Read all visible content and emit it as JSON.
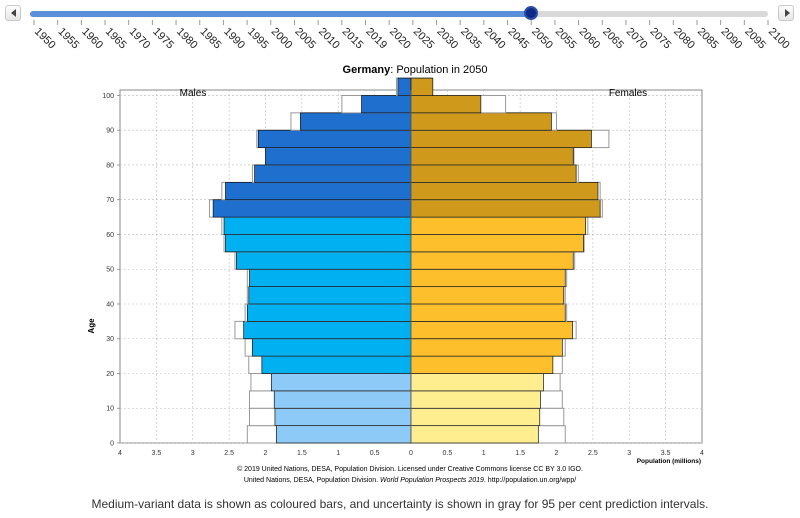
{
  "timeline": {
    "years": [
      "1950",
      "1955",
      "1960",
      "1965",
      "1970",
      "1975",
      "1980",
      "1985",
      "1990",
      "1995",
      "2000",
      "2005",
      "2010",
      "2015",
      "2019",
      "2020",
      "2025",
      "2030",
      "2035",
      "2040",
      "2045",
      "2050",
      "2055",
      "2060",
      "2065",
      "2070",
      "2075",
      "2080",
      "2085",
      "2090",
      "2095",
      "2100"
    ],
    "selected_year": "2050",
    "prev_icon": "chevron-left-icon",
    "next_icon": "chevron-right-icon",
    "track_color": "#d9d9d9",
    "fill_color": "#5b8fd9",
    "handle_color": "#0f2b86"
  },
  "chart_data": {
    "type": "bar",
    "orientation": "horizontal-pyramid",
    "title_country": "Germany",
    "title_rest": ": Population in 2050",
    "male_label": "Males",
    "female_label": "Females",
    "ylabel": "Age",
    "xlabel": "Population (millions)",
    "xlim": [
      -4,
      4
    ],
    "x_ticks": [
      "4",
      "3.5",
      "3",
      "2.5",
      "2",
      "1.5",
      "1",
      "0.5",
      "0",
      "0.5",
      "1",
      "1.5",
      "2",
      "2.5",
      "3",
      "3.5",
      "4"
    ],
    "y_ticks": [
      "0",
      "10",
      "20",
      "30",
      "40",
      "50",
      "60",
      "70",
      "80",
      "90",
      "100"
    ],
    "age_groups": [
      "0-4",
      "5-9",
      "10-14",
      "15-19",
      "20-24",
      "25-29",
      "30-34",
      "35-39",
      "40-44",
      "45-49",
      "50-54",
      "55-59",
      "60-64",
      "65-69",
      "70-74",
      "75-79",
      "80-84",
      "85-89",
      "90-94",
      "95-99",
      "100+"
    ],
    "series": [
      {
        "name": "Males",
        "values": [
          1.85,
          1.87,
          1.88,
          1.92,
          2.05,
          2.18,
          2.3,
          2.25,
          2.23,
          2.22,
          2.4,
          2.55,
          2.57,
          2.72,
          2.55,
          2.15,
          2.0,
          2.1,
          1.52,
          0.68,
          0.18
        ]
      },
      {
        "name": "Females",
        "values": [
          1.75,
          1.77,
          1.78,
          1.82,
          1.95,
          2.08,
          2.22,
          2.12,
          2.1,
          2.12,
          2.23,
          2.37,
          2.4,
          2.6,
          2.57,
          2.27,
          2.23,
          2.48,
          1.93,
          0.96,
          0.3
        ]
      }
    ],
    "uncertainty_upper": {
      "Males": [
        2.25,
        2.22,
        2.22,
        2.2,
        2.23,
        2.28,
        2.42,
        2.28,
        2.25,
        2.25,
        2.42,
        2.57,
        2.6,
        2.77,
        2.6,
        2.18,
        2.0,
        2.12,
        1.65,
        0.95,
        0.2
      ],
      "Females": [
        2.12,
        2.1,
        2.08,
        2.05,
        2.08,
        2.12,
        2.27,
        2.14,
        2.12,
        2.14,
        2.25,
        2.38,
        2.43,
        2.63,
        2.6,
        2.3,
        2.24,
        2.72,
        2.0,
        1.3,
        0.28
      ]
    },
    "colors": {
      "male_young": "#8ecaf7",
      "male_working": "#00b0f0",
      "male_old": "#1f6fcf",
      "female_young": "#ffee90",
      "female_working": "#fdc02c",
      "female_old": "#cf9a1c",
      "uncertainty": "#999999"
    },
    "grid": true,
    "legend": "none"
  },
  "footer": {
    "copyright_line": "© 2019 United Nations, DESA, Population Division. Licensed under Creative Commons license CC BY 3.0 IGO.",
    "source_prefix": "United Nations, DESA, Population Division. ",
    "source_title": "World Population Prospects 2019",
    "source_suffix": ". http://population.un.org/wpp/"
  },
  "caption": "Medium-variant data is shown as coloured bars, and uncertainty is shown in gray for 95 per cent prediction intervals."
}
